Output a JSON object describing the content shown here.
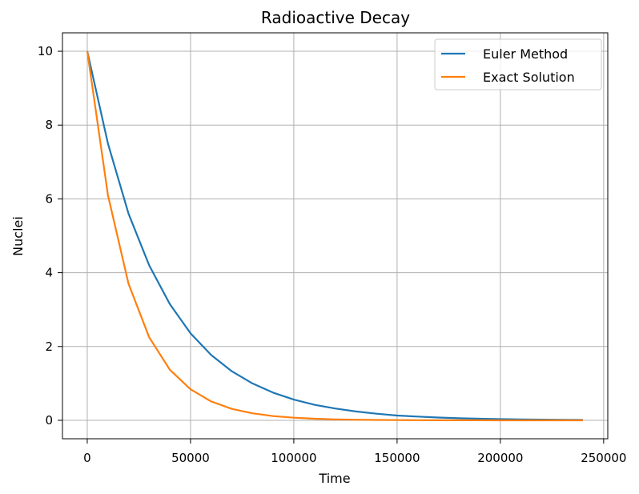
{
  "chart_data": {
    "type": "line",
    "title": "Radioactive Decay",
    "xlabel": "Time",
    "ylabel": "Nuclei",
    "xlim": [
      -12000,
      252000
    ],
    "ylim": [
      -0.5,
      10.5
    ],
    "xticks": [
      0,
      50000,
      100000,
      150000,
      200000,
      250000
    ],
    "xtick_labels": [
      "0",
      "50000",
      "100000",
      "150000",
      "200000",
      "250000"
    ],
    "yticks": [
      0,
      2,
      4,
      6,
      8,
      10
    ],
    "ytick_labels": [
      "0",
      "2",
      "4",
      "6",
      "8",
      "10"
    ],
    "grid": true,
    "legend_position": "top-right",
    "x": [
      0,
      10000,
      20000,
      30000,
      40000,
      50000,
      60000,
      70000,
      80000,
      90000,
      100000,
      110000,
      120000,
      130000,
      140000,
      150000,
      160000,
      170000,
      180000,
      190000,
      200000,
      210000,
      220000,
      230000,
      240000
    ],
    "series": [
      {
        "name": "Euler Method",
        "color": "#1f77b4",
        "values": [
          10.0,
          7.5,
          5.6,
          4.2,
          3.15,
          2.36,
          1.77,
          1.33,
          1.0,
          0.75,
          0.56,
          0.42,
          0.32,
          0.24,
          0.18,
          0.13,
          0.1,
          0.075,
          0.056,
          0.042,
          0.032,
          0.024,
          0.018,
          0.013,
          0.01
        ]
      },
      {
        "name": "Exact Solution",
        "color": "#ff7f0e",
        "values": [
          10.0,
          6.1,
          3.7,
          2.25,
          1.37,
          0.84,
          0.51,
          0.31,
          0.19,
          0.115,
          0.07,
          0.043,
          0.026,
          0.016,
          0.01,
          0.006,
          0.004,
          0.002,
          0.001,
          0.001,
          0.0,
          0.0,
          0.0,
          0.0,
          0.0
        ]
      }
    ]
  }
}
